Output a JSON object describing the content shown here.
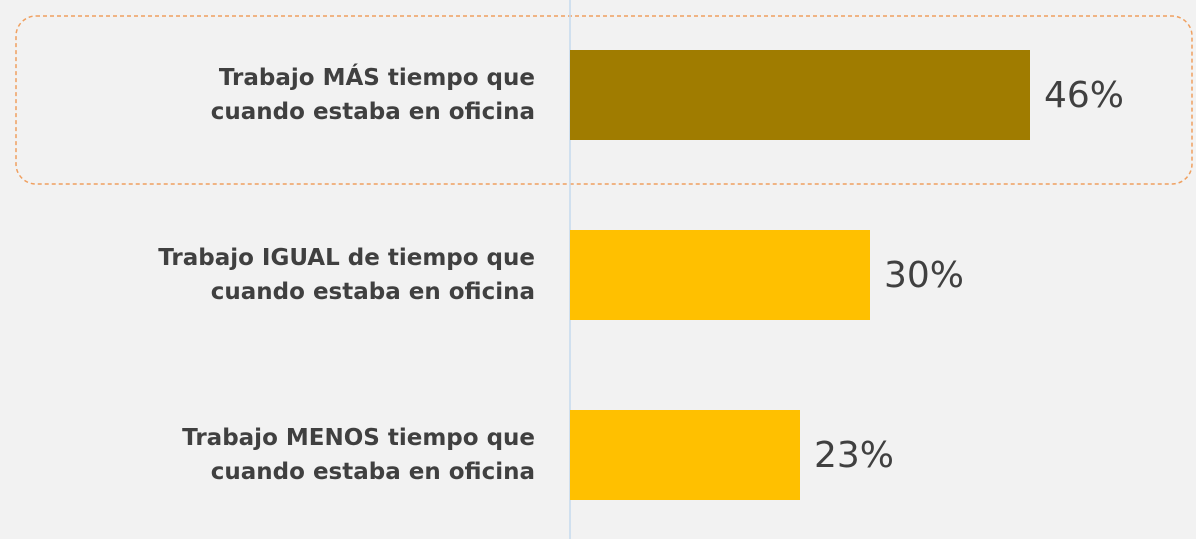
{
  "chart_data": {
    "type": "hbar",
    "categories": [
      "Trabajo MÁS tiempo que\ncuando estaba en oficina",
      "Trabajo IGUAL de tiempo que\ncuando estaba en oficina",
      "Trabajo MENOS tiempo que\ncuando estaba en oficina"
    ],
    "values": [
      46,
      30,
      23
    ],
    "value_labels": [
      "46%",
      "30%",
      "23%"
    ],
    "colors": [
      "#a07c00",
      "#ffc000",
      "#ffc000"
    ],
    "xlim": [
      0,
      60
    ]
  }
}
